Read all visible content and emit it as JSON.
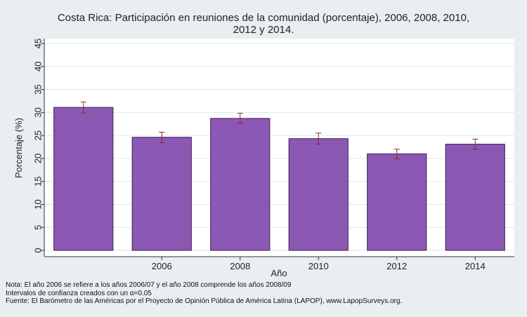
{
  "chart_data": {
    "type": "bar",
    "title_lines": [
      "Costa Rica: Participación en reuniones de la comunidad (porcentaje), 2006, 2008, 2010,",
      "2012 y 2014."
    ],
    "categories": [
      "",
      "2006",
      "2008",
      "2010",
      "2012",
      "2014"
    ],
    "values": [
      31.1,
      24.6,
      28.7,
      24.3,
      21.0,
      23.1
    ],
    "ci_low": [
      29.9,
      23.4,
      27.6,
      23.1,
      19.9,
      22.0
    ],
    "ci_high": [
      32.3,
      25.7,
      29.8,
      25.5,
      22.0,
      24.2
    ],
    "xlabel": "Año",
    "ylabel": "Porcentaje (%)",
    "ylim": [
      0,
      45
    ],
    "yticks": [
      "0",
      "5",
      "10",
      "15",
      "20",
      "25",
      "30",
      "35",
      "40",
      "45"
    ],
    "grid": true,
    "colors": {
      "bar": "#8b59b3",
      "bar_edge": "#3a1f55",
      "error_bar": "#8b2a2a",
      "plot_bg": "#ffffff",
      "page_bg": "#e9eef1",
      "grid": "#dfe6ea"
    }
  },
  "notes": {
    "line1": "Nota: El año 2006 se refiere a los años 2006/07 y el año 2008 comprende los años 2008/09",
    "line2": "Intervalos de confianza creados con un α=0.05",
    "line3": "Fuente: El Barómetro de las Américas por el Proyecto de Opinión Pública de América Latina (LAPOP), www.LapopSurveys.org."
  }
}
